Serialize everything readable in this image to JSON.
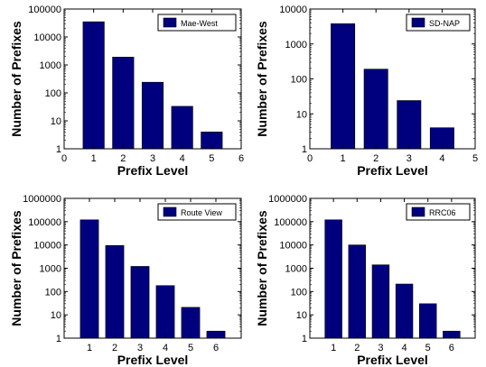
{
  "chart_data": [
    {
      "type": "bar",
      "yscale": "log",
      "legend": "Mae-West",
      "legend_position": "top-right",
      "xlabel": "Prefix Level",
      "ylabel": "Number of Prefixes",
      "x_ticks": [
        "0",
        "1",
        "2",
        "3",
        "4",
        "5",
        "6"
      ],
      "xlim": [
        0,
        6
      ],
      "y_ticks": [
        "1",
        "10",
        "100",
        "1000",
        "10000",
        "100000"
      ],
      "ylim": [
        1,
        100000
      ],
      "categories": [
        1,
        2,
        3,
        4,
        5
      ],
      "values": [
        35000,
        1900,
        240,
        33,
        4
      ],
      "color": "#00007f"
    },
    {
      "type": "bar",
      "yscale": "log",
      "legend": "SD-NAP",
      "legend_position": "top-right",
      "xlabel": "Prefix Level",
      "ylabel": "Number of Prefixes",
      "x_ticks": [
        "0",
        "1",
        "2",
        "3",
        "4",
        "5"
      ],
      "xlim": [
        0,
        5
      ],
      "y_ticks": [
        "1",
        "10",
        "100",
        "1000",
        "10000"
      ],
      "ylim": [
        1,
        10000
      ],
      "categories": [
        1,
        2,
        3,
        4
      ],
      "values": [
        3800,
        190,
        24,
        4
      ],
      "color": "#00007f"
    },
    {
      "type": "bar",
      "yscale": "log",
      "legend": "Route View",
      "legend_position": "top-right",
      "xlabel": "Prefix Level",
      "ylabel": "Number of Prefixes",
      "x_ticks": [
        "1",
        "2",
        "3",
        "4",
        "5",
        "6"
      ],
      "xlim": [
        0,
        7
      ],
      "y_ticks": [
        "1",
        "10",
        "100",
        "1000",
        "10000",
        "100000",
        "1000000"
      ],
      "ylim": [
        1,
        1000000
      ],
      "categories": [
        1,
        2,
        3,
        4,
        5,
        6
      ],
      "values": [
        120000,
        9500,
        1200,
        180,
        21,
        2
      ],
      "color": "#00007f"
    },
    {
      "type": "bar",
      "yscale": "log",
      "legend": "RRC06",
      "legend_position": "top-right",
      "xlabel": "Prefix Level",
      "ylabel": "Number of Prefixes",
      "x_ticks": [
        "1",
        "2",
        "3",
        "4",
        "5",
        "6"
      ],
      "xlim": [
        0,
        7
      ],
      "y_ticks": [
        "1",
        "10",
        "100",
        "1000",
        "10000",
        "100000",
        "1000000"
      ],
      "ylim": [
        1,
        1000000
      ],
      "categories": [
        1,
        2,
        3,
        4,
        5,
        6
      ],
      "values": [
        120000,
        10000,
        1400,
        210,
        30,
        2
      ],
      "color": "#00007f"
    }
  ]
}
